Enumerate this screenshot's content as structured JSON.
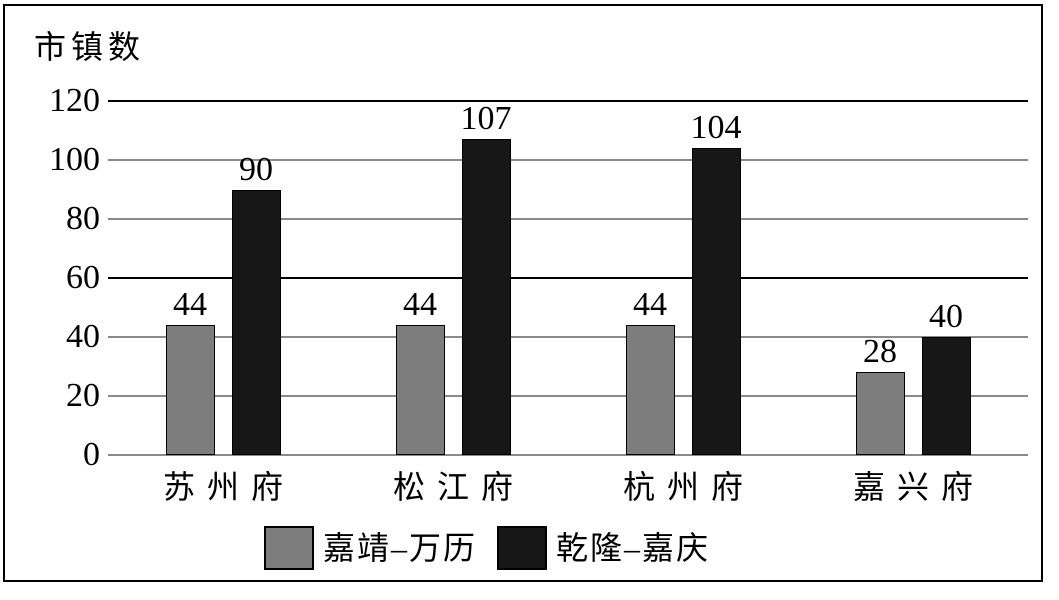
{
  "chart_data": {
    "type": "bar",
    "title": "",
    "ylabel": "市镇数",
    "xlabel": "",
    "categories": [
      "苏州府",
      "松江府",
      "杭州府",
      "嘉兴府"
    ],
    "series": [
      {
        "name": "嘉靖–万历",
        "color": "#7d7d7d",
        "values": [
          44,
          44,
          44,
          28
        ]
      },
      {
        "name": "乾隆–嘉庆",
        "color": "#171717",
        "values": [
          90,
          107,
          104,
          40
        ]
      }
    ],
    "yticks": [
      0,
      20,
      40,
      60,
      80,
      100,
      120
    ],
    "ylim": [
      0,
      120
    ],
    "grid": true,
    "major_gridlines_at": [
      60,
      120
    ],
    "gridline_color": "#8a8a8a",
    "major_gridline_color": "#000000",
    "legend_position": "bottom",
    "bar_value_labels": true,
    "frame_border_color": "#000000"
  }
}
